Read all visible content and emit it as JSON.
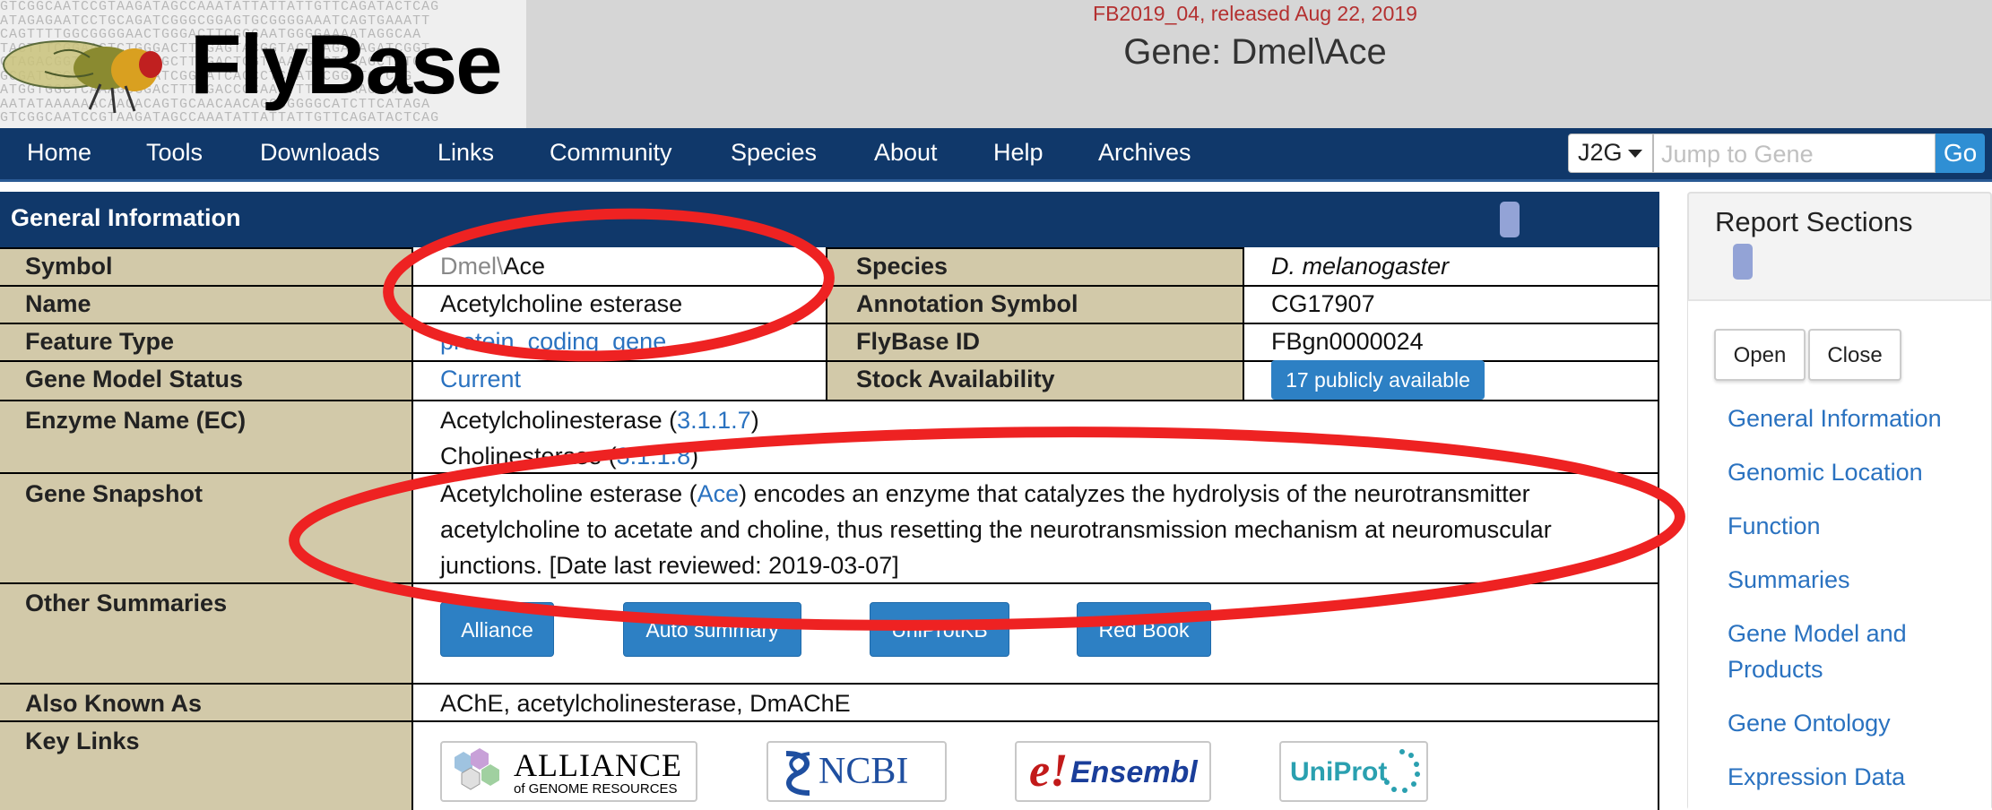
{
  "header": {
    "logo_text": "FlyBase",
    "dna_lines": [
      "GTCGGCAATCCGTAAGATAGCCAAATATTATTATTGTTCAGATACTCAG",
      "ATAGAGAATCCTGCAGATCGGGCGGAGTGCGGGGAAATCAGTGAAATT",
      "CAGTTTTGGCGGGGAACTGGGACTTCGGGAATGGGGAAAATAGGCAA",
      "TACTTTCGGAACTCTGGGACTTTGAGTACGGTACTAAGACAGATCGGT",
      "CTAGACGGTGCAGGACGAGCTTGGACTGGTCAATGGCTCGAGCTATG",
      "GCGATCCCGGATAGCGAATCGGAATCAGCCTCGATGCGGATCTCAG",
      "ATGGTGGCTCAAAGCGGACTTTTGACCCCAACTTTACAGAACAAAT",
      "AATATAAAAAACAACACAGTGCAACAACAGCCGGGGCATCTTCATAGA"
    ],
    "release": "FB2019_04, released Aug 22, 2019",
    "gene_title": "Gene: Dmel\\Ace"
  },
  "nav": {
    "items": [
      "Home",
      "Tools",
      "Downloads",
      "Links",
      "Community",
      "Species",
      "About",
      "Help",
      "Archives"
    ],
    "j2g_label": "J2G",
    "search_placeholder": "Jump to Gene",
    "go_label": "Go"
  },
  "general": {
    "title": "General Information",
    "symbol_label": "Symbol",
    "symbol_prefix": "Dmel\\",
    "symbol_value": "Ace",
    "species_label": "Species",
    "species_value": "D. melanogaster",
    "name_label": "Name",
    "name_value": "Acetylcholine esterase",
    "annotation_label": "Annotation Symbol",
    "annotation_value": "CG17907",
    "feature_label": "Feature Type",
    "feature_value": "protein_coding_gene",
    "flybase_id_label": "FlyBase ID",
    "flybase_id_value": "FBgn0000024",
    "model_status_label": "Gene Model Status",
    "model_status_value": "Current",
    "stock_label": "Stock Availability",
    "stock_value": "17 publicly available",
    "enzyme_label": "Enzyme Name (EC)",
    "enzyme_1_name": "Acetylcholinesterase (",
    "enzyme_1_ec": "3.1.1.7",
    "enzyme_2_name": "Cholinesterase (",
    "enzyme_2_ec": "3.1.1.8",
    "paren_close": ")",
    "snapshot_label": "Gene Snapshot",
    "snapshot_line1_pre": "Acetylcholine esterase (",
    "snapshot_line1_link": "Ace",
    "snapshot_line1_post": ") encodes an enzyme that catalyzes the hydrolysis of the neurotransmitter",
    "snapshot_line2": "acetylcholine to acetate and choline, thus resetting the neurotransmission mechanism at neuromuscular",
    "snapshot_line3": "junctions. [Date last reviewed: 2019-03-07]",
    "other_label": "Other Summaries",
    "other_buttons": [
      "Alliance",
      "Auto summary",
      "UniProtKB",
      "Red Book"
    ],
    "aka_label": "Also Known As",
    "aka_value": "AChE, acetylcholinesterase, DmAChE",
    "keylinks_label": "Key Links",
    "logo_alliance": "ALLIANCE",
    "logo_alliance_sub": "of GENOME RESOURCES",
    "logo_ncbi": "NCBI",
    "logo_ensembl": "Ensembl",
    "logo_uniprot": "UniProt"
  },
  "sidebar": {
    "title": "Report Sections",
    "open_label": "Open",
    "close_label": "Close",
    "links": [
      "General Information",
      "Genomic Location",
      "Function",
      "Summaries",
      "Gene Model and",
      "Products",
      "Gene Ontology",
      "Expression Data"
    ]
  },
  "colors": {
    "nav_bg": "#10386a",
    "label_bg": "#d2c9a9",
    "link": "#2a72c0",
    "button": "#2d80c4",
    "annotation": "#ee2222"
  }
}
